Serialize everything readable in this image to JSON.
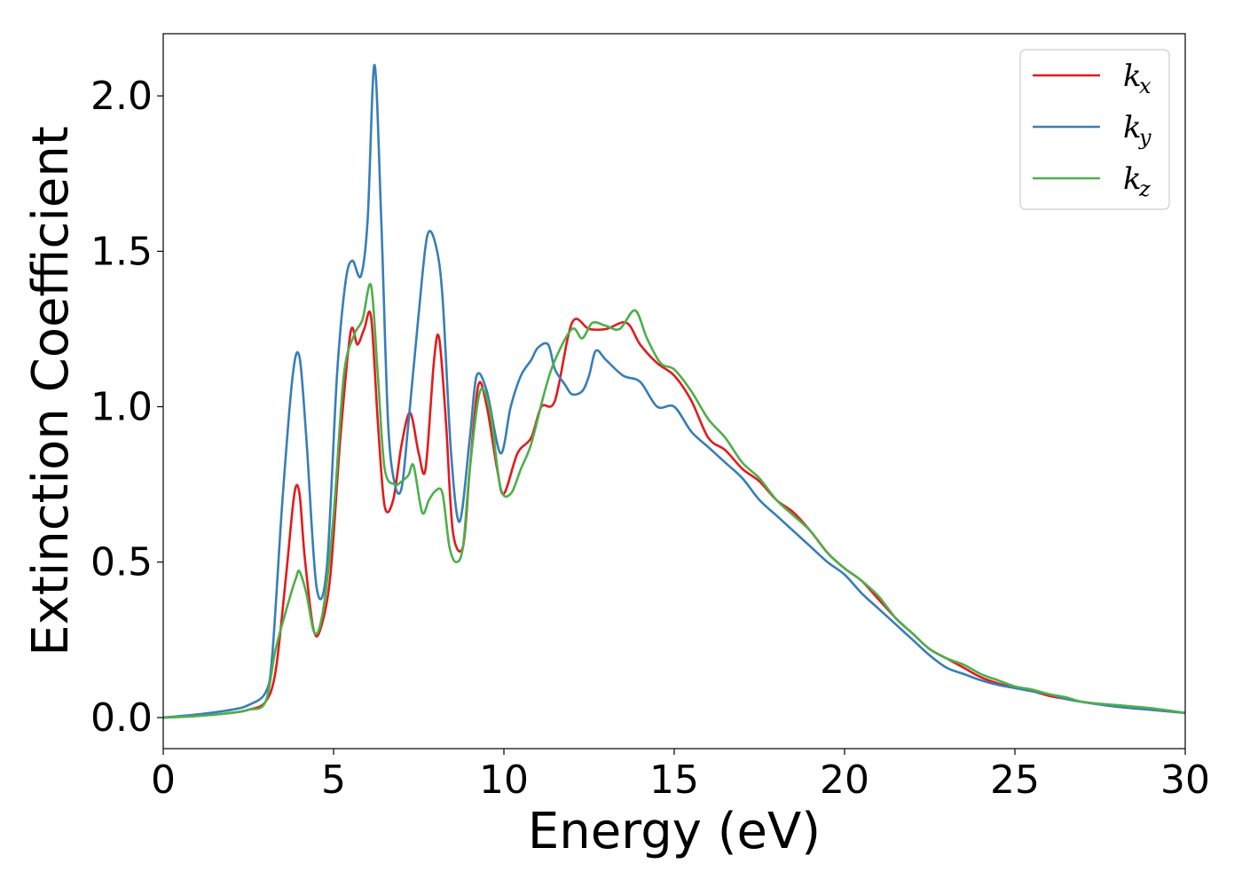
{
  "chart_data": {
    "type": "line",
    "xlabel": "Energy (eV)",
    "ylabel": "Extinction Coefficient",
    "xlim": [
      0,
      30
    ],
    "ylim": [
      -0.1,
      2.2
    ],
    "xticks": [
      0,
      5,
      10,
      15,
      20,
      25,
      30
    ],
    "xtick_labels": [
      "0",
      "5",
      "10",
      "15",
      "20",
      "25",
      "30"
    ],
    "yticks": [
      0.0,
      0.5,
      1.0,
      1.5,
      2.0
    ],
    "ytick_labels": [
      "0.0",
      "0.5",
      "1.0",
      "1.5",
      "2.0"
    ],
    "grid": false,
    "legend_position": "top-right",
    "series": [
      {
        "name": "k",
        "subscript": "x",
        "color": "#e41a1c",
        "x": [
          0,
          1,
          2,
          2.5,
          3,
          3.3,
          3.6,
          3.85,
          4.0,
          4.15,
          4.4,
          4.6,
          4.9,
          5.2,
          5.5,
          5.7,
          5.9,
          6.1,
          6.3,
          6.5,
          6.75,
          7.0,
          7.25,
          7.5,
          7.7,
          7.95,
          8.1,
          8.3,
          8.5,
          8.8,
          9.0,
          9.25,
          9.5,
          9.8,
          10.0,
          10.4,
          10.8,
          11.1,
          11.5,
          12.0,
          12.5,
          13.0,
          13.6,
          14.0,
          14.5,
          15.0,
          15.5,
          16.0,
          16.5,
          17.0,
          17.5,
          18.0,
          18.5,
          19.0,
          19.5,
          20.0,
          20.5,
          21.0,
          21.5,
          22.0,
          22.5,
          23.0,
          23.5,
          24.0,
          24.5,
          25.0,
          25.5,
          26.0,
          26.5,
          27.0,
          28.0,
          29.0,
          30.0
        ],
        "y": [
          0.0,
          0.005,
          0.015,
          0.025,
          0.05,
          0.15,
          0.45,
          0.72,
          0.72,
          0.52,
          0.29,
          0.28,
          0.45,
          0.9,
          1.24,
          1.2,
          1.25,
          1.29,
          0.95,
          0.68,
          0.7,
          0.88,
          0.98,
          0.85,
          0.8,
          1.15,
          1.22,
          0.95,
          0.6,
          0.55,
          0.8,
          1.07,
          1.0,
          0.8,
          0.72,
          0.85,
          0.9,
          1.0,
          1.02,
          1.27,
          1.25,
          1.25,
          1.27,
          1.2,
          1.14,
          1.1,
          1.02,
          0.9,
          0.86,
          0.8,
          0.76,
          0.7,
          0.66,
          0.6,
          0.53,
          0.48,
          0.44,
          0.38,
          0.32,
          0.27,
          0.22,
          0.19,
          0.16,
          0.13,
          0.11,
          0.095,
          0.085,
          0.07,
          0.06,
          0.05,
          0.035,
          0.025,
          0.015
        ]
      },
      {
        "name": "k",
        "subscript": "y",
        "color": "#377eb8",
        "x": [
          0,
          1,
          2,
          2.5,
          3,
          3.2,
          3.5,
          3.8,
          4.0,
          4.2,
          4.5,
          4.8,
          5.1,
          5.35,
          5.55,
          5.8,
          6.0,
          6.2,
          6.4,
          6.6,
          6.8,
          7.0,
          7.2,
          7.5,
          7.75,
          8.0,
          8.2,
          8.45,
          8.7,
          9.0,
          9.2,
          9.5,
          9.9,
          10.2,
          10.5,
          10.8,
          11.0,
          11.3,
          11.5,
          11.8,
          12.0,
          12.3,
          12.5,
          12.7,
          13.0,
          13.5,
          14.0,
          14.5,
          15.0,
          15.5,
          16.0,
          16.5,
          17.0,
          17.5,
          18.0,
          18.5,
          19.0,
          19.5,
          20.0,
          20.5,
          21.0,
          21.5,
          22.0,
          22.5,
          23.0,
          23.5,
          24.0,
          24.5,
          25.0,
          25.5,
          26.0,
          26.5,
          27.0,
          28.0,
          29.0,
          30.0
        ],
        "y": [
          0.0,
          0.01,
          0.025,
          0.04,
          0.08,
          0.2,
          0.7,
          1.1,
          1.16,
          0.9,
          0.42,
          0.48,
          1.1,
          1.4,
          1.47,
          1.42,
          1.6,
          2.1,
          1.6,
          0.95,
          0.75,
          0.74,
          0.95,
          1.3,
          1.55,
          1.52,
          1.35,
          0.85,
          0.63,
          0.9,
          1.1,
          1.05,
          0.85,
          1.0,
          1.1,
          1.15,
          1.19,
          1.2,
          1.12,
          1.07,
          1.04,
          1.05,
          1.1,
          1.18,
          1.15,
          1.1,
          1.08,
          1.0,
          1.0,
          0.92,
          0.87,
          0.82,
          0.77,
          0.7,
          0.65,
          0.6,
          0.55,
          0.5,
          0.46,
          0.4,
          0.35,
          0.3,
          0.25,
          0.2,
          0.16,
          0.14,
          0.12,
          0.105,
          0.095,
          0.085,
          0.075,
          0.06,
          0.05,
          0.035,
          0.025,
          0.015
        ]
      },
      {
        "name": "k",
        "subscript": "z",
        "color": "#4daf4a",
        "x": [
          0,
          1,
          2,
          2.5,
          3,
          3.3,
          3.7,
          3.9,
          4.0,
          4.2,
          4.45,
          4.7,
          5.0,
          5.3,
          5.6,
          5.85,
          6.1,
          6.3,
          6.5,
          6.8,
          7.0,
          7.2,
          7.35,
          7.6,
          7.8,
          8.0,
          8.2,
          8.4,
          8.6,
          8.8,
          9.0,
          9.3,
          9.6,
          9.9,
          10.2,
          10.5,
          10.8,
          11.2,
          11.5,
          12.0,
          12.3,
          12.6,
          13.0,
          13.4,
          13.85,
          14.2,
          14.6,
          15.0,
          15.5,
          16.0,
          16.5,
          17.0,
          17.5,
          18.0,
          18.5,
          19.0,
          19.5,
          20.0,
          20.5,
          21.0,
          21.5,
          22.0,
          22.5,
          23.0,
          23.5,
          24.0,
          24.5,
          25.0,
          25.5,
          26.0,
          26.5,
          27.0,
          28.0,
          29.0,
          30.0
        ],
        "y": [
          0.0,
          0.005,
          0.015,
          0.025,
          0.05,
          0.22,
          0.38,
          0.45,
          0.47,
          0.4,
          0.27,
          0.35,
          0.65,
          1.1,
          1.23,
          1.28,
          1.39,
          1.1,
          0.8,
          0.75,
          0.76,
          0.78,
          0.81,
          0.66,
          0.7,
          0.73,
          0.72,
          0.55,
          0.5,
          0.55,
          0.8,
          1.05,
          0.98,
          0.74,
          0.72,
          0.8,
          0.88,
          1.05,
          1.15,
          1.25,
          1.22,
          1.27,
          1.26,
          1.25,
          1.31,
          1.22,
          1.14,
          1.12,
          1.05,
          0.96,
          0.9,
          0.82,
          0.77,
          0.7,
          0.65,
          0.6,
          0.53,
          0.48,
          0.44,
          0.39,
          0.32,
          0.27,
          0.22,
          0.19,
          0.17,
          0.14,
          0.12,
          0.1,
          0.09,
          0.075,
          0.065,
          0.05,
          0.04,
          0.03,
          0.015
        ]
      }
    ]
  }
}
